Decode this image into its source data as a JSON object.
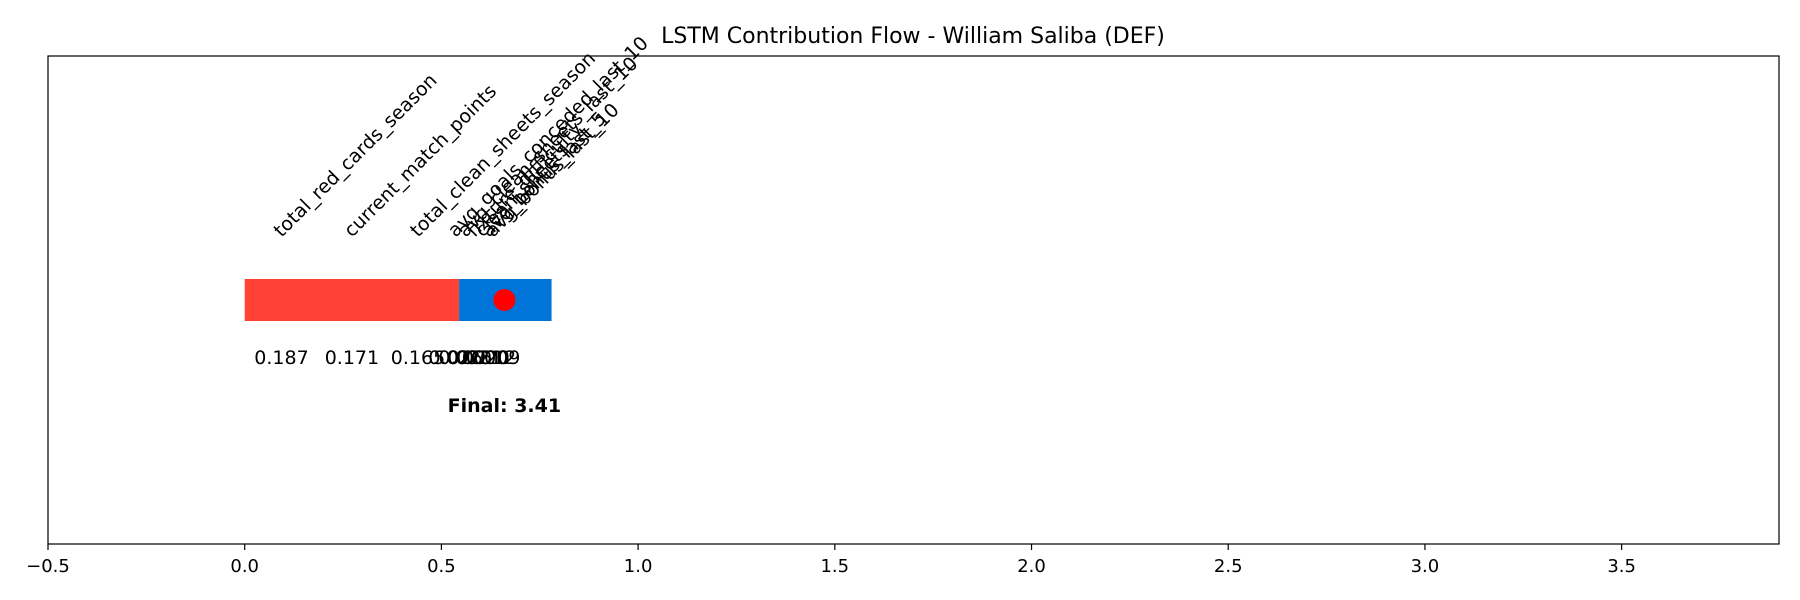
{
  "chart_data": {
    "type": "bar",
    "title": "LSTM Contribution Flow - William Saliba (DEF)",
    "xlabel": "",
    "ylabel": "",
    "xlim": [
      -0.5,
      3.9
    ],
    "x_ticks": [
      -0.5,
      0.0,
      0.5,
      1.0,
      1.5,
      2.0,
      2.5,
      3.0,
      3.5
    ],
    "x_tick_labels": [
      "−0.5",
      "0.0",
      "0.5",
      "1.0",
      "1.5",
      "2.0",
      "2.5",
      "3.0",
      "3.5"
    ],
    "grid": false,
    "legend": "none",
    "series": [
      {
        "label": "total_red_cards_season",
        "value": 0.187,
        "value_label": "0.187",
        "direction": "negative"
      },
      {
        "label": "current_match_points",
        "value": 0.171,
        "value_label": "0.171",
        "direction": "negative"
      },
      {
        "label": "total_clean_sheets_season",
        "value": 0.165,
        "value_label": "0.165",
        "direction": "negative"
      },
      {
        "label": "avg_goals_conceded_last_10",
        "value": 0.026,
        "value_label": "0.026",
        "direction": "negative"
      },
      {
        "label": "avg_clean_sheets_last_10",
        "value": 0.025,
        "value_label": "0.025",
        "direction": "positive"
      },
      {
        "label": "fixture_difficulty",
        "value": 0.021,
        "value_label": "0.021",
        "direction": "positive"
      },
      {
        "label": "clean_sheets",
        "value": 0.02,
        "value_label": "0.020",
        "direction": "positive"
      },
      {
        "label": "avg_bonus_last_5",
        "value": 0.012,
        "value_label": "0.012",
        "direction": "positive"
      },
      {
        "label": "avg_bonus_last_10",
        "value": 0.009,
        "value_label": "0.009",
        "direction": "positive"
      }
    ],
    "segments": [
      {
        "start": 0.0,
        "end": 0.545,
        "color": "#ff4136"
      },
      {
        "start": 0.545,
        "end": 0.78,
        "color": "#0074d9"
      }
    ],
    "marker": {
      "x": 0.66,
      "color": "#ff0000"
    },
    "final_label": "Final: 3.41"
  }
}
